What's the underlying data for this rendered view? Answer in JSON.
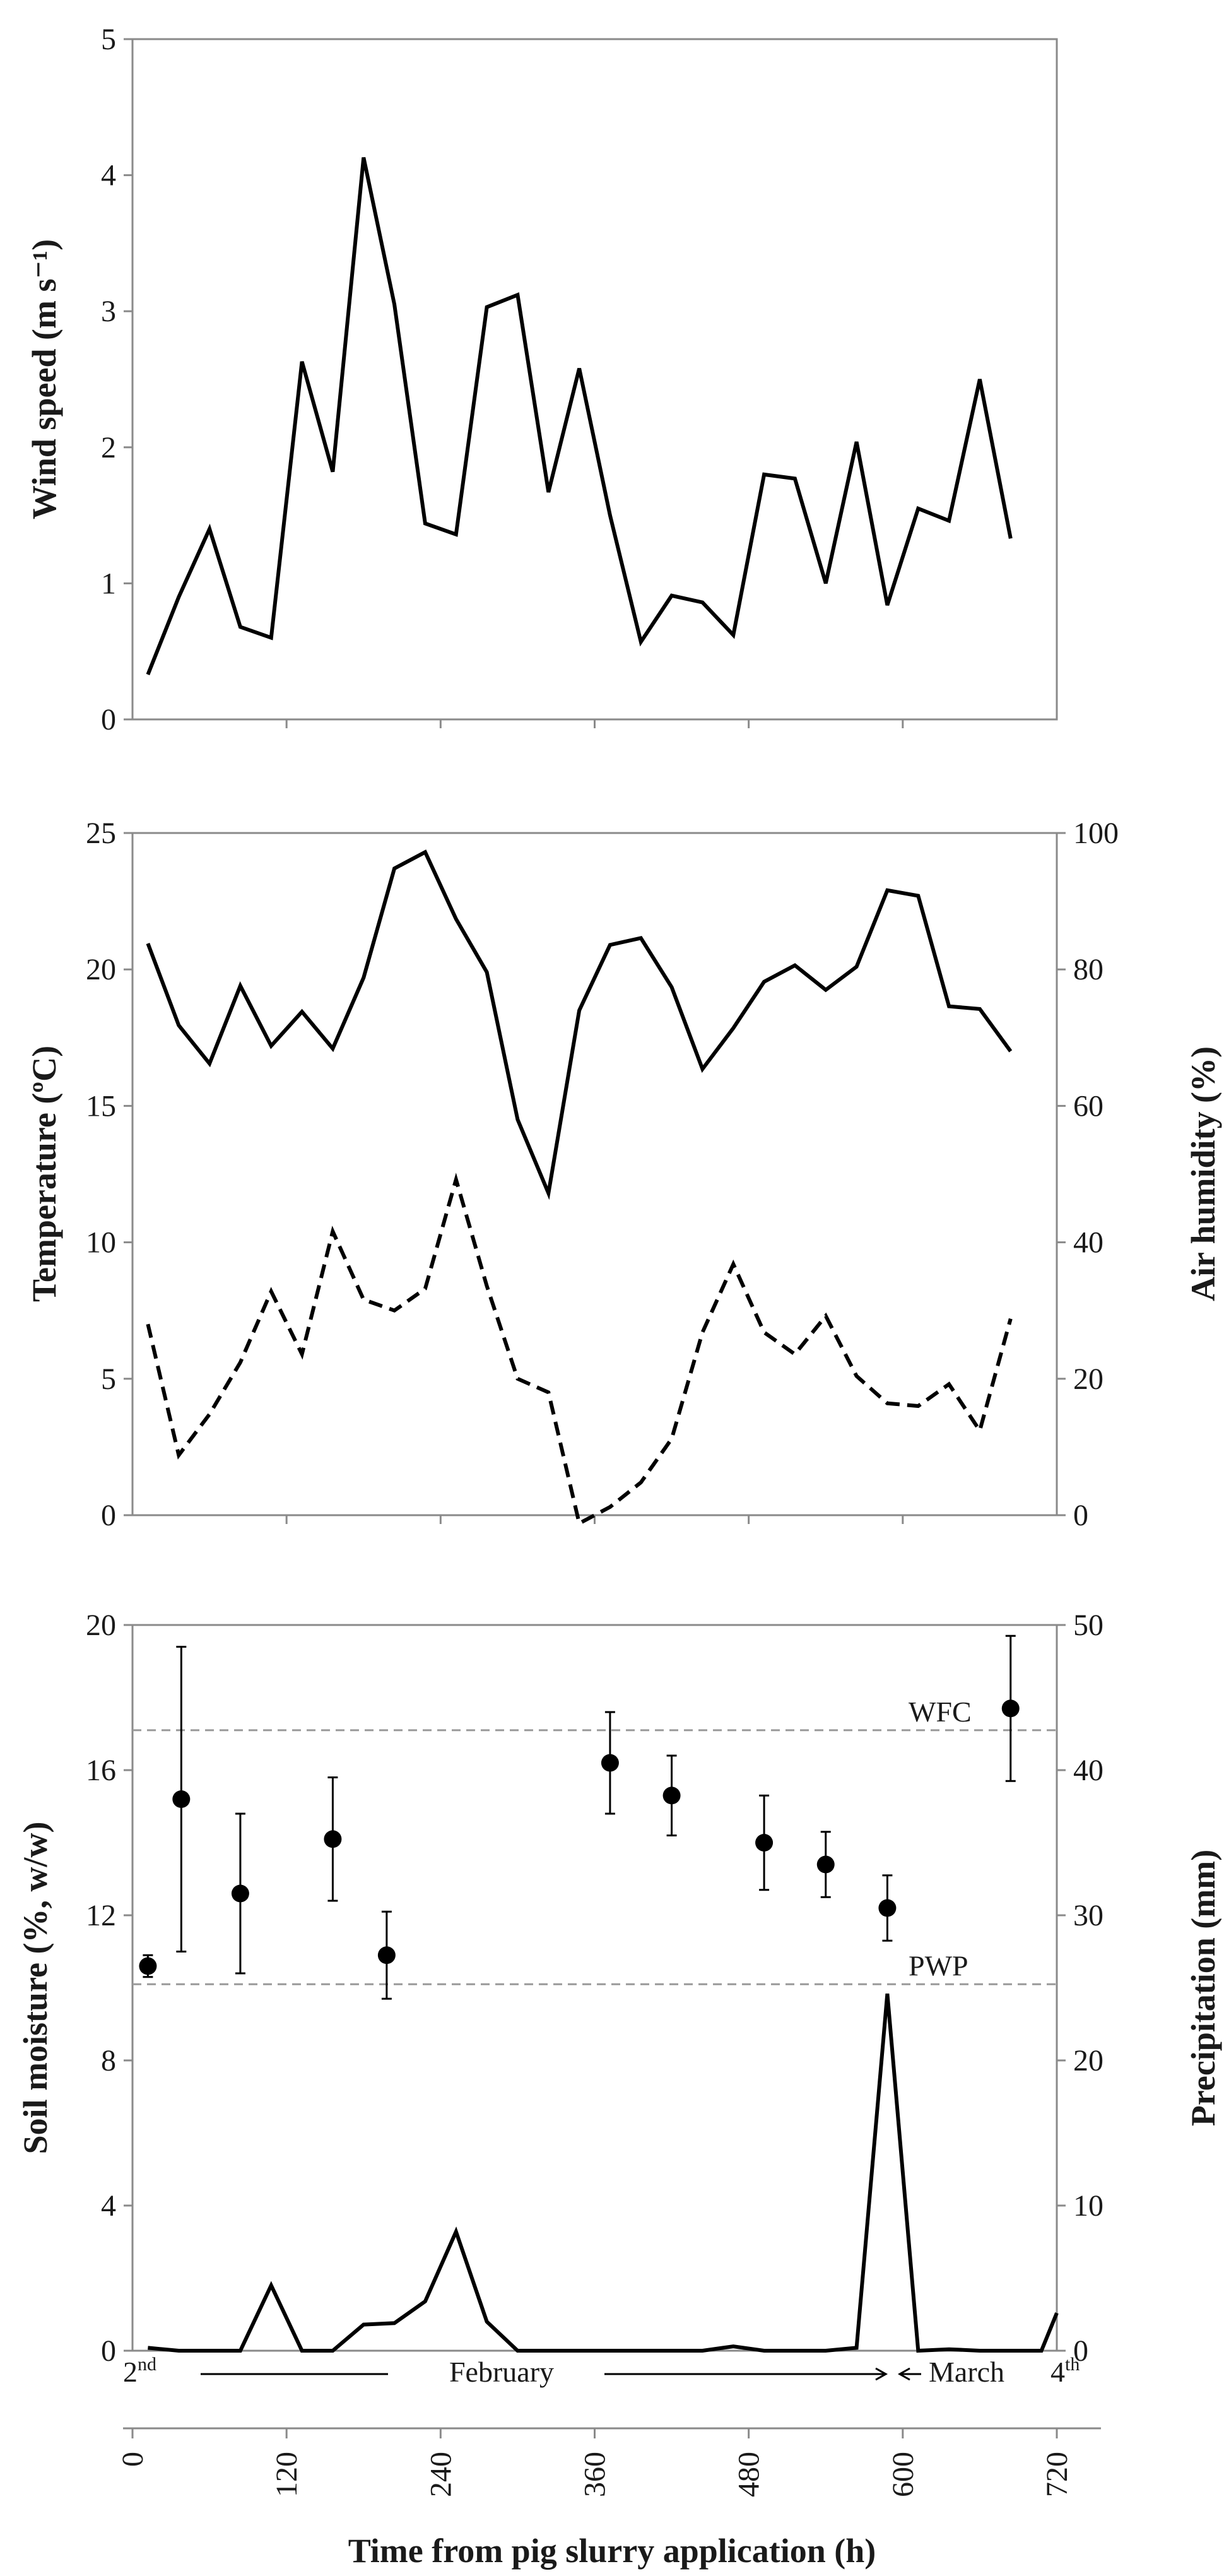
{
  "chart_data": [
    {
      "type": "line",
      "panel": "top",
      "ylabel": "Wind speed (m s⁻¹)",
      "ylim": [
        0,
        5
      ],
      "yticks": [
        "0",
        "1",
        "2",
        "3",
        "4",
        "5"
      ],
      "xlim": [
        0,
        720
      ],
      "series": [
        {
          "name": "Wind speed",
          "style": "solid",
          "points": [
            [
              12,
              0.33
            ],
            [
              36,
              0.9
            ],
            [
              60,
              1.4
            ],
            [
              84,
              0.68
            ],
            [
              108,
              0.6
            ],
            [
              132,
              2.63
            ],
            [
              156,
              1.82
            ],
            [
              180,
              4.13
            ],
            [
              204,
              3.05
            ],
            [
              228,
              1.44
            ],
            [
              252,
              1.36
            ],
            [
              276,
              3.03
            ],
            [
              300,
              3.12
            ],
            [
              324,
              1.67
            ],
            [
              348,
              2.58
            ],
            [
              372,
              1.5
            ],
            [
              396,
              0.57
            ],
            [
              420,
              0.91
            ],
            [
              444,
              0.86
            ],
            [
              468,
              0.62
            ],
            [
              492,
              1.8
            ],
            [
              516,
              1.77
            ],
            [
              540,
              1.0
            ],
            [
              564,
              2.04
            ],
            [
              588,
              0.84
            ],
            [
              612,
              1.55
            ],
            [
              636,
              1.46
            ],
            [
              660,
              2.5
            ],
            [
              684,
              1.33
            ]
          ]
        }
      ]
    },
    {
      "type": "line",
      "panel": "middle",
      "ylabel": "Temperature (ºC)",
      "ylabel_right": "Air humidity (%)",
      "ylim": [
        0,
        25
      ],
      "ylim_right": [
        0,
        100
      ],
      "yticks": [
        "0",
        "5",
        "10",
        "15",
        "20",
        "25"
      ],
      "yticks_right": [
        "0",
        "20",
        "40",
        "60",
        "80",
        "100"
      ],
      "xlim": [
        0,
        720
      ],
      "series": [
        {
          "name": "Air humidity",
          "axis": "right",
          "style": "solid",
          "points": [
            [
              12,
              83.8
            ],
            [
              36,
              71.8
            ],
            [
              60,
              66.2
            ],
            [
              84,
              77.6
            ],
            [
              108,
              68.8
            ],
            [
              132,
              73.8
            ],
            [
              156,
              68.4
            ],
            [
              180,
              78.8
            ],
            [
              204,
              94.8
            ],
            [
              228,
              97.2
            ],
            [
              252,
              87.4
            ],
            [
              276,
              79.6
            ],
            [
              300,
              58.0
            ],
            [
              324,
              47.2
            ],
            [
              348,
              74.0
            ],
            [
              372,
              83.6
            ],
            [
              396,
              84.6
            ],
            [
              420,
              77.4
            ],
            [
              444,
              65.4
            ],
            [
              468,
              71.4
            ],
            [
              492,
              78.2
            ],
            [
              516,
              80.6
            ],
            [
              540,
              77.0
            ],
            [
              564,
              80.4
            ],
            [
              588,
              91.6
            ],
            [
              612,
              90.8
            ],
            [
              636,
              74.6
            ],
            [
              660,
              74.2
            ],
            [
              684,
              68.0
            ]
          ]
        },
        {
          "name": "Temperature",
          "axis": "left",
          "style": "dashed",
          "points": [
            [
              12,
              7.0
            ],
            [
              36,
              2.2
            ],
            [
              60,
              3.7
            ],
            [
              84,
              5.6
            ],
            [
              108,
              8.2
            ],
            [
              132,
              5.9
            ],
            [
              156,
              10.4
            ],
            [
              180,
              7.9
            ],
            [
              204,
              7.5
            ],
            [
              228,
              8.3
            ],
            [
              252,
              12.3
            ],
            [
              276,
              8.4
            ],
            [
              300,
              5.0
            ],
            [
              324,
              4.5
            ],
            [
              348,
              -0.3
            ],
            [
              372,
              0.3
            ],
            [
              396,
              1.2
            ],
            [
              420,
              2.8
            ],
            [
              444,
              6.7
            ],
            [
              468,
              9.2
            ],
            [
              492,
              6.7
            ],
            [
              516,
              5.9
            ],
            [
              540,
              7.3
            ],
            [
              564,
              5.1
            ],
            [
              588,
              4.1
            ],
            [
              612,
              4.0
            ],
            [
              636,
              4.8
            ],
            [
              660,
              3.1
            ],
            [
              684,
              7.2
            ]
          ]
        }
      ]
    },
    {
      "type": "line",
      "panel": "bottom",
      "ylabel": "Soil moisture (%, w/w)",
      "ylabel_right": "Precipitation (mm)",
      "xlabel": "Time from pig slurry application (h)",
      "ylim": [
        0,
        20
      ],
      "ylim_right": [
        0,
        50
      ],
      "yticks": [
        "0",
        "4",
        "8",
        "12",
        "16",
        "20"
      ],
      "yticks_right": [
        "0",
        "10",
        "20",
        "30",
        "40",
        "50"
      ],
      "xlim": [
        0,
        720
      ],
      "xticks": [
        "0",
        "120",
        "240",
        "360",
        "480",
        "600",
        "720"
      ],
      "reference_lines": [
        {
          "label": "WFC",
          "value": 17.1
        },
        {
          "label": "PWP",
          "value": 10.1
        }
      ],
      "series": [
        {
          "name": "Precipitation",
          "axis": "right",
          "style": "solid",
          "points": [
            [
              12,
              0.2
            ],
            [
              36,
              0.0
            ],
            [
              60,
              0.0
            ],
            [
              84,
              0.0
            ],
            [
              108,
              4.5
            ],
            [
              132,
              0.0
            ],
            [
              156,
              0.0
            ],
            [
              180,
              1.8
            ],
            [
              204,
              1.9
            ],
            [
              228,
              3.4
            ],
            [
              252,
              8.2
            ],
            [
              276,
              2.0
            ],
            [
              300,
              0.0
            ],
            [
              324,
              0.0
            ],
            [
              348,
              0.0
            ],
            [
              372,
              0.0
            ],
            [
              396,
              0.0
            ],
            [
              420,
              0.0
            ],
            [
              444,
              0.0
            ],
            [
              468,
              0.3
            ],
            [
              492,
              0.0
            ],
            [
              516,
              0.0
            ],
            [
              540,
              0.0
            ],
            [
              564,
              0.2
            ],
            [
              588,
              24.6
            ],
            [
              612,
              0.0
            ],
            [
              636,
              0.1
            ],
            [
              660,
              0.0
            ],
            [
              684,
              0.0
            ],
            [
              708,
              0.0
            ],
            [
              720,
              2.6
            ]
          ]
        },
        {
          "name": "Soil moisture",
          "axis": "left",
          "style": "points",
          "points": [
            {
              "x": 12,
              "y": 10.6,
              "err": 0.3
            },
            {
              "x": 38,
              "y": 15.2,
              "err": 4.2
            },
            {
              "x": 84,
              "y": 12.6,
              "err": 2.2
            },
            {
              "x": 156,
              "y": 14.1,
              "err": 1.7
            },
            {
              "x": 198,
              "y": 10.9,
              "err": 1.2
            },
            {
              "x": 372,
              "y": 16.2,
              "err": 1.4
            },
            {
              "x": 420,
              "y": 15.3,
              "err": 1.1
            },
            {
              "x": 492,
              "y": 14.0,
              "err": 1.3
            },
            {
              "x": 540,
              "y": 13.4,
              "err": 0.9
            },
            {
              "x": 588,
              "y": 12.2,
              "err": 0.9
            },
            {
              "x": 684,
              "y": 17.7,
              "err": 2.0
            }
          ]
        }
      ],
      "period_annotations": {
        "start": "2",
        "start_sup": "nd",
        "month_1": "February",
        "month_2": "March",
        "end": "4",
        "end_sup": "th"
      }
    }
  ]
}
